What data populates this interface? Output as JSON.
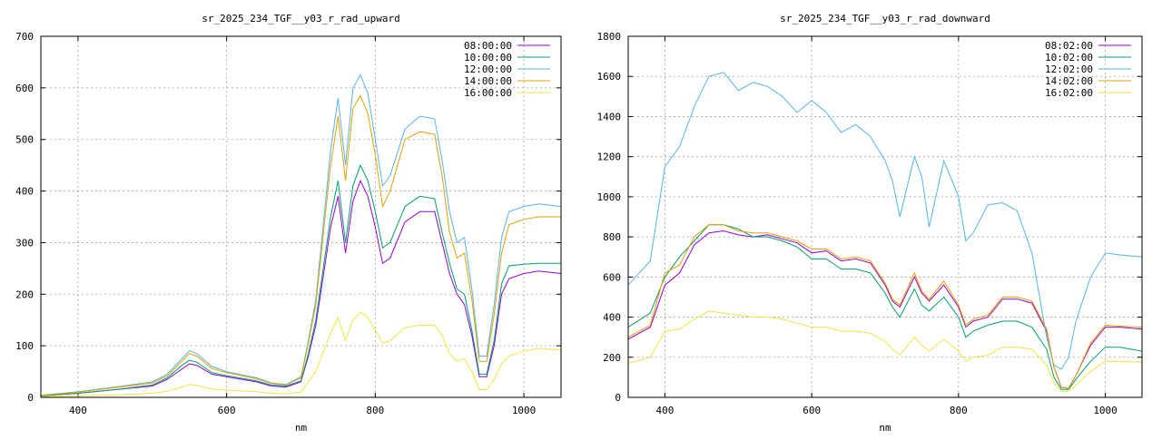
{
  "chart_data": [
    {
      "type": "line",
      "title": "sr_2025_234_TGF__y03_r_rad_upward",
      "xlabel": "nm",
      "ylabel": "",
      "xlim": [
        350,
        1050
      ],
      "ylim": [
        0,
        700
      ],
      "xticks": [
        400,
        600,
        800,
        1000
      ],
      "yticks": [
        0,
        100,
        200,
        300,
        400,
        500,
        600,
        700
      ],
      "grid": true,
      "legend_position": "top-right",
      "x": [
        350,
        400,
        450,
        500,
        520,
        540,
        550,
        560,
        580,
        600,
        640,
        660,
        680,
        700,
        710,
        720,
        740,
        750,
        760,
        770,
        780,
        790,
        800,
        810,
        820,
        840,
        860,
        880,
        890,
        900,
        910,
        920,
        930,
        940,
        950,
        960,
        970,
        980,
        1000,
        1020,
        1050
      ],
      "series": [
        {
          "name": "08:00:00",
          "color": "#9400d3",
          "values": [
            3,
            8,
            15,
            22,
            35,
            55,
            65,
            62,
            45,
            40,
            30,
            22,
            20,
            30,
            80,
            140,
            330,
            390,
            280,
            380,
            420,
            390,
            330,
            260,
            270,
            340,
            360,
            360,
            300,
            240,
            200,
            180,
            120,
            40,
            40,
            100,
            200,
            230,
            240,
            245,
            240
          ]
        },
        {
          "name": "10:00:00",
          "color": "#009e73",
          "values": [
            3,
            8,
            15,
            24,
            38,
            62,
            72,
            68,
            48,
            42,
            32,
            24,
            22,
            32,
            85,
            150,
            350,
            420,
            300,
            410,
            450,
            420,
            360,
            290,
            300,
            370,
            390,
            385,
            320,
            260,
            210,
            200,
            130,
            45,
            45,
            110,
            220,
            255,
            258,
            260,
            260
          ]
        },
        {
          "name": "12:00:00",
          "color": "#56b4e9",
          "values": [
            4,
            11,
            20,
            30,
            45,
            75,
            90,
            85,
            60,
            50,
            38,
            28,
            25,
            40,
            110,
            190,
            480,
            580,
            450,
            600,
            625,
            590,
            500,
            410,
            430,
            520,
            545,
            540,
            460,
            360,
            300,
            310,
            210,
            80,
            80,
            180,
            310,
            360,
            370,
            375,
            370
          ]
        },
        {
          "name": "14:00:00",
          "color": "#e69f00",
          "values": [
            4,
            10,
            19,
            28,
            42,
            70,
            85,
            80,
            56,
            48,
            36,
            27,
            24,
            38,
            105,
            180,
            450,
            545,
            420,
            560,
            585,
            550,
            470,
            370,
            400,
            500,
            515,
            510,
            430,
            320,
            270,
            280,
            190,
            70,
            70,
            160,
            280,
            335,
            345,
            350,
            350
          ]
        },
        {
          "name": "16:00:00",
          "color": "#f0e442",
          "values": [
            1,
            3,
            5,
            8,
            12,
            20,
            25,
            23,
            16,
            14,
            11,
            8,
            7,
            10,
            30,
            50,
            125,
            155,
            110,
            150,
            165,
            155,
            130,
            105,
            110,
            135,
            140,
            140,
            120,
            85,
            70,
            75,
            50,
            15,
            15,
            35,
            65,
            80,
            90,
            95,
            92
          ]
        }
      ]
    },
    {
      "type": "line",
      "title": "sr_2025_234_TGF__y03_r_rad_downward",
      "xlabel": "nm",
      "ylabel": "",
      "xlim": [
        350,
        1050
      ],
      "ylim": [
        0,
        1800
      ],
      "xticks": [
        400,
        600,
        800,
        1000
      ],
      "yticks": [
        0,
        200,
        400,
        600,
        800,
        1000,
        1200,
        1400,
        1600,
        1800
      ],
      "grid": true,
      "legend_position": "top-right",
      "x": [
        350,
        380,
        400,
        420,
        440,
        460,
        480,
        500,
        520,
        540,
        560,
        580,
        600,
        620,
        640,
        660,
        680,
        700,
        710,
        720,
        740,
        750,
        760,
        780,
        800,
        810,
        820,
        840,
        860,
        880,
        900,
        920,
        930,
        940,
        950,
        960,
        980,
        1000,
        1020,
        1050
      ],
      "series": [
        {
          "name": "08:02:00",
          "color": "#9400d3",
          "values": [
            290,
            350,
            560,
            620,
            760,
            820,
            830,
            810,
            800,
            810,
            790,
            770,
            720,
            730,
            680,
            690,
            670,
            560,
            480,
            450,
            600,
            520,
            480,
            560,
            450,
            350,
            380,
            400,
            490,
            490,
            470,
            330,
            150,
            50,
            45,
            110,
            260,
            350,
            350,
            340
          ]
        },
        {
          "name": "10:02:00",
          "color": "#009e73",
          "values": [
            350,
            420,
            600,
            700,
            780,
            860,
            860,
            840,
            800,
            800,
            780,
            750,
            690,
            690,
            640,
            640,
            620,
            520,
            450,
            400,
            540,
            460,
            430,
            500,
            400,
            300,
            330,
            360,
            380,
            380,
            350,
            240,
            100,
            40,
            40,
            90,
            180,
            250,
            250,
            230
          ]
        },
        {
          "name": "12:02:00",
          "color": "#56b4e9",
          "values": [
            560,
            680,
            1150,
            1250,
            1450,
            1600,
            1620,
            1530,
            1570,
            1550,
            1500,
            1420,
            1480,
            1420,
            1320,
            1360,
            1300,
            1180,
            1080,
            900,
            1200,
            1100,
            850,
            1180,
            1000,
            780,
            820,
            960,
            970,
            930,
            720,
            300,
            160,
            140,
            200,
            380,
            600,
            720,
            710,
            700
          ]
        },
        {
          "name": "14:02:00",
          "color": "#e69f00",
          "values": [
            300,
            360,
            620,
            660,
            800,
            860,
            860,
            830,
            820,
            820,
            800,
            780,
            740,
            740,
            690,
            700,
            680,
            570,
            490,
            460,
            620,
            530,
            490,
            580,
            460,
            360,
            390,
            410,
            500,
            500,
            480,
            340,
            150,
            50,
            45,
            110,
            270,
            360,
            355,
            350
          ]
        },
        {
          "name": "16:02:00",
          "color": "#f0e442",
          "values": [
            170,
            200,
            330,
            340,
            390,
            430,
            420,
            410,
            400,
            400,
            390,
            370,
            350,
            350,
            330,
            330,
            320,
            280,
            240,
            210,
            300,
            260,
            230,
            290,
            230,
            180,
            200,
            210,
            250,
            250,
            240,
            160,
            70,
            30,
            30,
            60,
            130,
            180,
            180,
            175
          ]
        }
      ]
    }
  ]
}
